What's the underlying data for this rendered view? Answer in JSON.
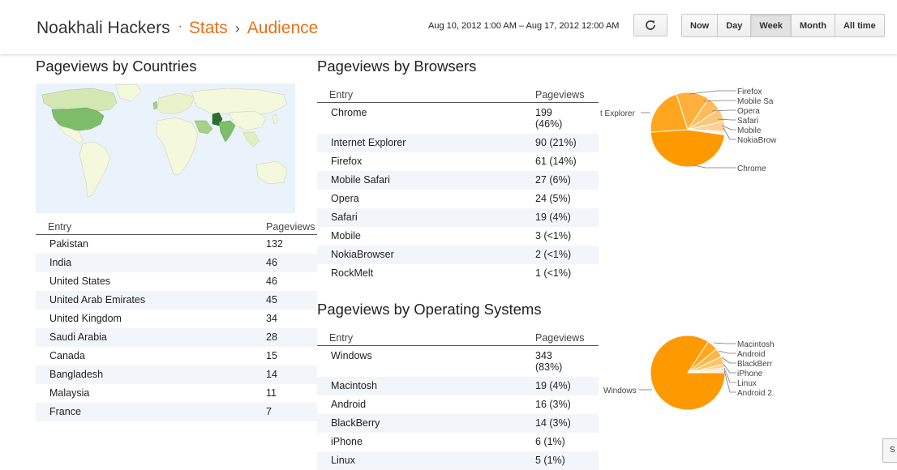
{
  "header": {
    "blog_name": "Noakhali Hackers",
    "separator_dot": "·",
    "crumb_stats": "Stats",
    "crumb_separator": "›",
    "crumb_audience": "Audience",
    "date_range": "Aug 10, 2012 1:00 AM – Aug 17, 2012 12:00 AM",
    "refresh_icon": "refresh-icon",
    "range_buttons": [
      {
        "label": "Now",
        "active": false
      },
      {
        "label": "Day",
        "active": false
      },
      {
        "label": "Week",
        "active": true
      },
      {
        "label": "Month",
        "active": false
      },
      {
        "label": "All time",
        "active": false
      }
    ]
  },
  "countries": {
    "title": "Pageviews by Countries",
    "col_entry": "Entry",
    "col_pageviews": "Pageviews",
    "rows": [
      {
        "entry": "Pakistan",
        "value": "132"
      },
      {
        "entry": "India",
        "value": "46"
      },
      {
        "entry": "United States",
        "value": "46"
      },
      {
        "entry": "United Arab Emirates",
        "value": "45"
      },
      {
        "entry": "United Kingdom",
        "value": "34"
      },
      {
        "entry": "Saudi Arabia",
        "value": "28"
      },
      {
        "entry": "Canada",
        "value": "15"
      },
      {
        "entry": "Bangladesh",
        "value": "14"
      },
      {
        "entry": "Malaysia",
        "value": "11"
      },
      {
        "entry": "France",
        "value": "7"
      }
    ],
    "map_colors": {
      "water": "#eaf3fb",
      "land": "#f4f8dc",
      "low": "#d4e8b4",
      "mid": "#7ebd6a",
      "high": "#2e6e2a"
    }
  },
  "browsers": {
    "title": "Pageviews by Browsers",
    "col_entry": "Entry",
    "col_pageviews": "Pageviews",
    "rows": [
      {
        "entry": "Chrome",
        "value": "199",
        "pct": "(46%)"
      },
      {
        "entry": "Internet Explorer",
        "value": "90 (21%)"
      },
      {
        "entry": "Firefox",
        "value": "61 (14%)"
      },
      {
        "entry": "Mobile Safari",
        "value": "27 (6%)"
      },
      {
        "entry": "Opera",
        "value": "24 (5%)"
      },
      {
        "entry": "Safari",
        "value": "19 (4%)"
      },
      {
        "entry": "Mobile",
        "value": "3 (<1%)"
      },
      {
        "entry": "NokiaBrowser",
        "value": "2 (<1%)"
      },
      {
        "entry": "RockMelt",
        "value": "1 (<1%)"
      }
    ],
    "pie_labels": [
      "Firefox",
      "Mobile Sa",
      "Opera",
      "Safari",
      "Mobile",
      "NokiaBrow",
      "Chrome",
      "t Explorer"
    ],
    "pie_values": [
      199,
      90,
      61,
      27,
      24,
      19,
      3,
      2,
      1
    ]
  },
  "os": {
    "title": "Pageviews by Operating Systems",
    "col_entry": "Entry",
    "col_pageviews": "Pageviews",
    "rows": [
      {
        "entry": "Windows",
        "value": "343",
        "pct": "(83%)"
      },
      {
        "entry": "Macintosh",
        "value": "19 (4%)"
      },
      {
        "entry": "Android",
        "value": "16 (3%)"
      },
      {
        "entry": "BlackBerry",
        "value": "14 (3%)"
      },
      {
        "entry": "iPhone",
        "value": "6 (1%)"
      },
      {
        "entry": "Linux",
        "value": "5 (1%)"
      }
    ],
    "pie_labels": [
      "Macintosh",
      "Android",
      "BlackBerr",
      "iPhone",
      "Linux",
      "Android 2.",
      "Windows"
    ],
    "pie_values": [
      343,
      19,
      16,
      14,
      6,
      5,
      4
    ]
  },
  "colors": {
    "accent": "#e8711a",
    "pie_main": "#ff9900"
  },
  "corner_tab_label": "S"
}
